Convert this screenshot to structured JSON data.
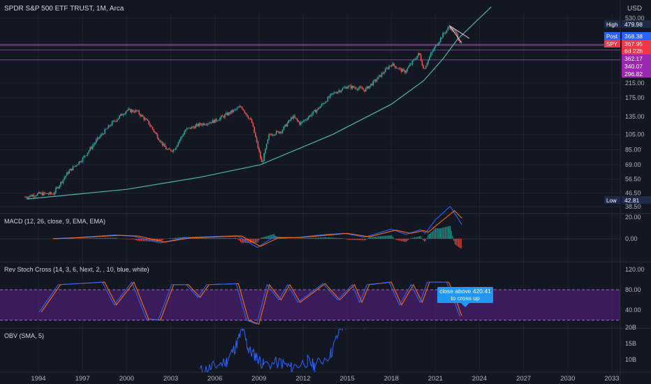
{
  "header": {
    "symbol_line": "SPDR S&P 500 ETF TRUST, 1M, Arca",
    "currency": "USD"
  },
  "chart_data": [
    {
      "type": "candlestick",
      "title": "SPDR S&P 500 ETF TRUST, 1M, Arca",
      "scale": "log",
      "y_ticks": [
        530.0,
        215.0,
        175.0,
        135.0,
        105.0,
        85.0,
        69.0,
        56.5,
        46.5,
        38.5
      ],
      "x_ticks": [
        "1994",
        "1997",
        "2000",
        "2003",
        "2006",
        "2009",
        "2012",
        "2015",
        "2018",
        "2021",
        "2024",
        "2027",
        "2030",
        "2033"
      ],
      "price_labels": [
        {
          "text": "High",
          "value": "479.98",
          "color": "#1e2a4a"
        },
        {
          "text": "Post",
          "value": "368.38",
          "color": "#2962ff"
        },
        {
          "text": "SPY",
          "value": "367.95",
          "color": "#f23645"
        },
        {
          "text": "",
          "value": "6d 22h",
          "color": "#f23645"
        },
        {
          "text": "",
          "value": "362.17",
          "color": "#9c27b0"
        },
        {
          "text": "",
          "value": "340.07",
          "color": "#9c27b0"
        },
        {
          "text": "",
          "value": "296.82",
          "color": "#9c27b0"
        },
        {
          "text": "Low",
          "value": "42.81",
          "color": "#1e2a4a"
        }
      ],
      "horizontal_lines": [
        368.38,
        362.17,
        340.07,
        296.82
      ],
      "monthly_close_path": [
        [
          1993.1,
          44
        ],
        [
          1994.0,
          46
        ],
        [
          1995.0,
          46
        ],
        [
          1996.0,
          62
        ],
        [
          1997.0,
          75
        ],
        [
          1998.0,
          98
        ],
        [
          1999.0,
          123
        ],
        [
          2000.0,
          147
        ],
        [
          2000.7,
          145
        ],
        [
          2001.5,
          123
        ],
        [
          2002.5,
          90
        ],
        [
          2002.8,
          84
        ],
        [
          2003.2,
          85
        ],
        [
          2004.0,
          112
        ],
        [
          2005.0,
          121
        ],
        [
          2006.0,
          127
        ],
        [
          2007.0,
          142
        ],
        [
          2007.8,
          155
        ],
        [
          2008.5,
          125
        ],
        [
          2008.9,
          90
        ],
        [
          2009.2,
          70
        ],
        [
          2009.7,
          105
        ],
        [
          2010.5,
          110
        ],
        [
          2011.3,
          135
        ],
        [
          2011.8,
          122
        ],
        [
          2013.0,
          150
        ],
        [
          2014.0,
          185
        ],
        [
          2015.0,
          205
        ],
        [
          2015.8,
          200
        ],
        [
          2016.2,
          195
        ],
        [
          2017.0,
          226
        ],
        [
          2018.0,
          280
        ],
        [
          2018.9,
          250
        ],
        [
          2019.9,
          325
        ],
        [
          2020.2,
          260
        ],
        [
          2020.8,
          335
        ],
        [
          2021.5,
          420
        ],
        [
          2021.95,
          470
        ],
        [
          2022.3,
          440
        ],
        [
          2022.6,
          395
        ],
        [
          2022.8,
          365
        ]
      ],
      "curve_support_path": [
        [
          1993.2,
          42.8
        ],
        [
          2000,
          49
        ],
        [
          2005,
          58
        ],
        [
          2009.1,
          69
        ],
        [
          2014,
          105
        ],
        [
          2018,
          160
        ],
        [
          2020.2,
          222
        ],
        [
          2021.5,
          300
        ],
        [
          2022.5,
          395
        ],
        [
          2024.8,
          620
        ]
      ],
      "channel_upper_line": [
        [
          2021.95,
          478
        ],
        [
          2023.3,
          400
        ]
      ],
      "channel_lower_line": [
        [
          2021.95,
          478
        ],
        [
          2022.75,
          380
        ]
      ]
    },
    {
      "type": "line",
      "title": "MACD (12, 26, close, 9, EMA, EMA)",
      "y_ticks": [
        20.0,
        0.0
      ],
      "macd_path": [
        [
          1995,
          0.2
        ],
        [
          1996.5,
          1.0
        ],
        [
          1999.2,
          3.5
        ],
        [
          2000.5,
          2.3
        ],
        [
          2002.3,
          -3.8
        ],
        [
          2004.0,
          1.2
        ],
        [
          2007.5,
          2.8
        ],
        [
          2008.9,
          -8.0
        ],
        [
          2010.0,
          1.5
        ],
        [
          2011.5,
          1.0
        ],
        [
          2013.5,
          4.0
        ],
        [
          2014.8,
          5.0
        ],
        [
          2016.2,
          1.5
        ],
        [
          2018.0,
          9.0
        ],
        [
          2019.0,
          4.0
        ],
        [
          2020.0,
          8.5
        ],
        [
          2020.3,
          5.0
        ],
        [
          2021.0,
          17.5
        ],
        [
          2022.0,
          30.0
        ],
        [
          2022.8,
          13.0
        ]
      ],
      "signal_path": [
        [
          1995,
          0.0
        ],
        [
          1996.5,
          0.8
        ],
        [
          1999.5,
          3.2
        ],
        [
          2000.8,
          2.5
        ],
        [
          2002.6,
          -3.0
        ],
        [
          2004.3,
          0.8
        ],
        [
          2007.8,
          2.6
        ],
        [
          2009.1,
          -7.0
        ],
        [
          2010.3,
          0.8
        ],
        [
          2011.8,
          1.2
        ],
        [
          2013.8,
          3.5
        ],
        [
          2015.0,
          5.0
        ],
        [
          2016.5,
          1.8
        ],
        [
          2018.3,
          8.0
        ],
        [
          2019.3,
          5.0
        ],
        [
          2020.2,
          7.5
        ],
        [
          2020.5,
          6.0
        ],
        [
          2021.3,
          15.0
        ],
        [
          2022.3,
          26.0
        ],
        [
          2022.8,
          19.0
        ]
      ]
    },
    {
      "type": "line",
      "title": "Rev Stoch Cross (14, 3, 6, Next, 2, , 10, blue, white)",
      "y_ticks": [
        120.0,
        80.0,
        40.0
      ],
      "band": [
        80,
        20
      ],
      "k_path": [
        [
          1994.2,
          36
        ],
        [
          1995.5,
          90
        ],
        [
          1998.5,
          95
        ],
        [
          1999.3,
          50
        ],
        [
          2000.5,
          95
        ],
        [
          2001.5,
          22
        ],
        [
          2002.3,
          20
        ],
        [
          2003.2,
          90
        ],
        [
          2004.2,
          90
        ],
        [
          2005.0,
          65
        ],
        [
          2005.6,
          90
        ],
        [
          2007.6,
          92
        ],
        [
          2008.3,
          20
        ],
        [
          2009.0,
          12
        ],
        [
          2009.7,
          90
        ],
        [
          2010.5,
          60
        ],
        [
          2011.1,
          90
        ],
        [
          2011.8,
          55
        ],
        [
          2013.5,
          92
        ],
        [
          2014.5,
          60
        ],
        [
          2015.5,
          90
        ],
        [
          2016.0,
          55
        ],
        [
          2016.5,
          90
        ],
        [
          2018.0,
          95
        ],
        [
          2018.7,
          50
        ],
        [
          2019.5,
          90
        ],
        [
          2020.1,
          55
        ],
        [
          2020.6,
          95
        ],
        [
          2021.9,
          95
        ],
        [
          2022.3,
          70
        ],
        [
          2022.7,
          35
        ],
        [
          2022.8,
          28
        ]
      ],
      "annotation": "close above 420.41\nto cross up"
    },
    {
      "type": "line",
      "title": "OBV (SMA, 5)",
      "y_ticks": [
        "20B",
        "15B",
        "10B"
      ],
      "obv_path": [
        [
          2005.0,
          6.5
        ],
        [
          2005.8,
          7.5
        ],
        [
          2006.8,
          9.5
        ],
        [
          2007.4,
          14.0
        ],
        [
          2007.9,
          19.5
        ],
        [
          2008.3,
          13.0
        ],
        [
          2008.8,
          11.0
        ],
        [
          2009.3,
          8.5
        ],
        [
          2010.5,
          9.0
        ],
        [
          2011.2,
          7.5
        ],
        [
          2012.3,
          9.5
        ],
        [
          2012.8,
          8.0
        ],
        [
          2013.9,
          12.0
        ],
        [
          2014.6,
          20.5
        ],
        [
          2015.3,
          21.0
        ],
        [
          2017.5,
          21.5
        ]
      ]
    }
  ]
}
